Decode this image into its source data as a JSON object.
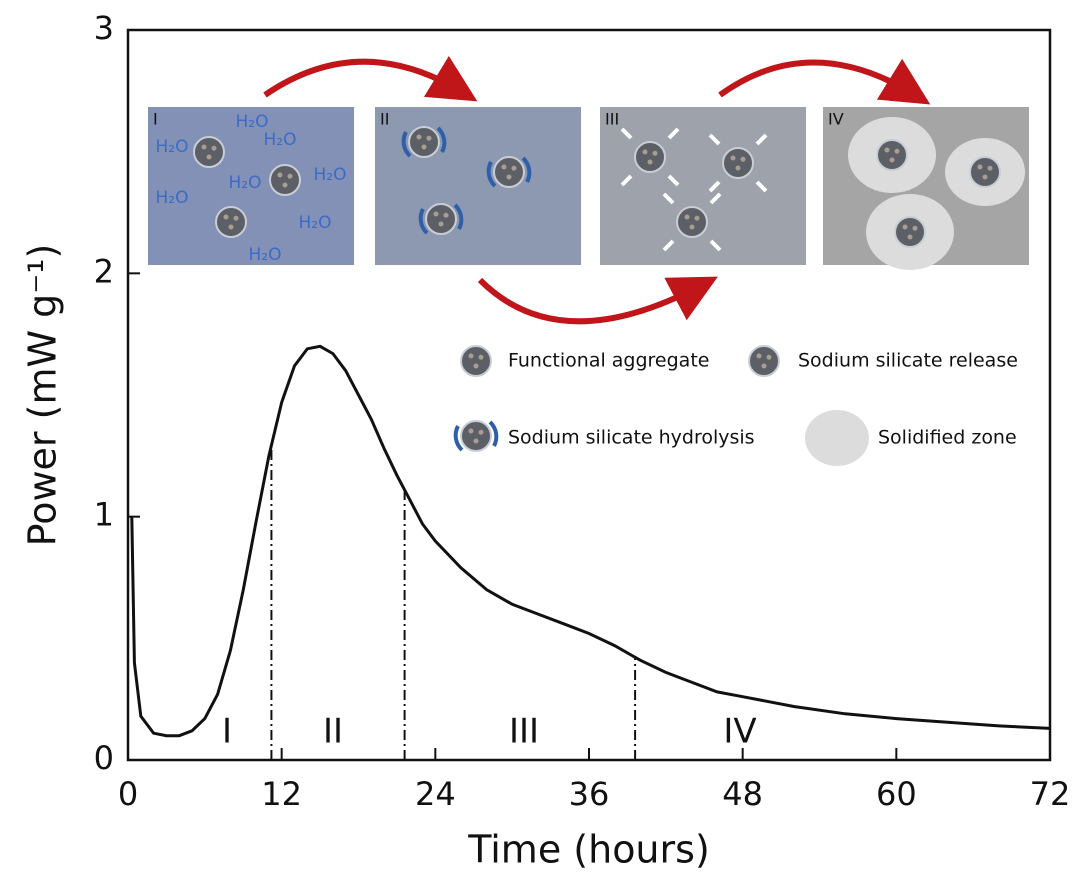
{
  "chart_data": {
    "type": "line",
    "xlabel": "Time (hours)",
    "ylabel": "Power (mW g⁻¹)",
    "xlim": [
      0,
      72
    ],
    "ylim": [
      0,
      3
    ],
    "xticks": [
      0,
      12,
      24,
      36,
      48,
      60,
      72
    ],
    "yticks": [
      0,
      1,
      2,
      3
    ],
    "color": "#111111",
    "x": [
      0.3,
      0.5,
      1,
      2,
      3,
      4,
      5,
      6,
      7,
      8,
      9,
      10,
      11,
      12,
      13,
      14,
      15,
      16,
      17,
      18,
      19,
      20,
      21,
      22,
      23,
      24,
      26,
      28,
      30,
      32,
      34,
      36,
      38,
      40,
      42,
      44,
      46,
      48,
      52,
      56,
      60,
      64,
      68,
      72
    ],
    "values": [
      1.0,
      0.4,
      0.18,
      0.11,
      0.1,
      0.1,
      0.12,
      0.17,
      0.27,
      0.45,
      0.7,
      0.98,
      1.25,
      1.47,
      1.62,
      1.69,
      1.7,
      1.67,
      1.6,
      1.5,
      1.4,
      1.28,
      1.17,
      1.07,
      0.97,
      0.9,
      0.79,
      0.7,
      0.64,
      0.6,
      0.56,
      0.52,
      0.47,
      0.41,
      0.36,
      0.32,
      0.28,
      0.26,
      0.22,
      0.19,
      0.17,
      0.155,
      0.14,
      0.13
    ],
    "phase_boundaries": [
      11.2,
      21.6,
      39.6
    ],
    "phases": [
      "I",
      "II",
      "III",
      "IV"
    ],
    "inset": {
      "panels": [
        "I",
        "II",
        "III",
        "IV"
      ],
      "water_labels": [
        "H₂O",
        "H₂O",
        "H₂O",
        "H₂O",
        "H₂O",
        "H₂O",
        "H₂O",
        "H₂O"
      ],
      "legend": [
        "Functional aggregate",
        "Sodium silicate release",
        "Sodium silicate hydrolysis",
        "Solidified zone"
      ]
    }
  }
}
